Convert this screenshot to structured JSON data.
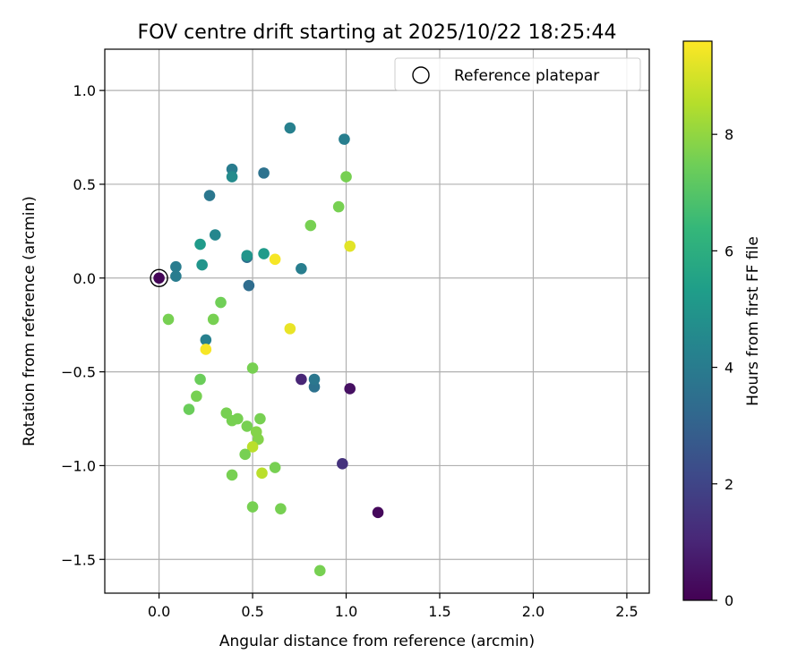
{
  "chart_data": {
    "type": "scatter",
    "title": "FOV centre drift starting at 2025/10/22 18:25:44",
    "xlabel": "Angular distance from reference (arcmin)",
    "ylabel": "Rotation from reference (arcmin)",
    "xlim": [
      -0.29,
      2.62
    ],
    "ylim": [
      -1.68,
      1.22
    ],
    "xticks": [
      0.0,
      0.5,
      1.0,
      1.5,
      2.0,
      2.5
    ],
    "xtick_labels": [
      "0.0",
      "0.5",
      "1.0",
      "1.5",
      "2.0",
      "2.5"
    ],
    "yticks": [
      -1.5,
      -1.0,
      -0.5,
      0.0,
      0.5,
      1.0
    ],
    "ytick_labels": [
      "−1.5",
      "−1.0",
      "−0.5",
      "0.0",
      "0.5",
      "1.0"
    ],
    "grid": true,
    "legend": {
      "position": "top-right",
      "entries": [
        "Reference platepar"
      ]
    },
    "reference_point": {
      "x": 0.0,
      "y": 0.0
    },
    "colorbar": {
      "label": "Hours from first FF file",
      "range": [
        0,
        9.6
      ],
      "ticks": [
        0,
        2,
        4,
        6,
        8
      ],
      "tick_labels": [
        "0",
        "2",
        "4",
        "6",
        "8"
      ],
      "colormap_stops": [
        "#440154",
        "#482878",
        "#3e4989",
        "#31688e",
        "#26828e",
        "#1f9e89",
        "#35b779",
        "#6ece58",
        "#b5de2b",
        "#fde725"
      ]
    },
    "points": [
      {
        "x": 0.0,
        "y": 0.0,
        "h": 0.1
      },
      {
        "x": 1.17,
        "y": -1.25,
        "h": 0.2
      },
      {
        "x": 1.02,
        "y": -0.59,
        "h": 0.4
      },
      {
        "x": 0.76,
        "y": -0.54,
        "h": 1.0
      },
      {
        "x": 0.98,
        "y": -0.99,
        "h": 1.4
      },
      {
        "x": 0.48,
        "y": -0.04,
        "h": 3.4
      },
      {
        "x": 0.47,
        "y": 0.11,
        "h": 3.5
      },
      {
        "x": 0.83,
        "y": -0.58,
        "h": 3.6
      },
      {
        "x": 0.83,
        "y": -0.54,
        "h": 3.8
      },
      {
        "x": 0.56,
        "y": 0.56,
        "h": 3.6
      },
      {
        "x": 0.27,
        "y": 0.44,
        "h": 3.8
      },
      {
        "x": 0.39,
        "y": 0.58,
        "h": 4.0
      },
      {
        "x": 0.09,
        "y": 0.06,
        "h": 4.0
      },
      {
        "x": 0.09,
        "y": 0.01,
        "h": 4.0
      },
      {
        "x": 0.25,
        "y": -0.33,
        "h": 4.2
      },
      {
        "x": 0.7,
        "y": 0.8,
        "h": 4.2
      },
      {
        "x": 0.99,
        "y": 0.74,
        "h": 4.1
      },
      {
        "x": 0.3,
        "y": 0.23,
        "h": 4.4
      },
      {
        "x": 0.76,
        "y": 0.05,
        "h": 4.1
      },
      {
        "x": 0.39,
        "y": 0.54,
        "h": 4.6
      },
      {
        "x": 0.23,
        "y": 0.07,
        "h": 5.0
      },
      {
        "x": 0.22,
        "y": 0.18,
        "h": 5.2
      },
      {
        "x": 0.56,
        "y": 0.13,
        "h": 5.2
      },
      {
        "x": 0.47,
        "y": 0.12,
        "h": 5.0
      },
      {
        "x": 0.05,
        "y": -0.22,
        "h": 7.6
      },
      {
        "x": 0.29,
        "y": -0.22,
        "h": 7.6
      },
      {
        "x": 0.33,
        "y": -0.13,
        "h": 7.5
      },
      {
        "x": 0.22,
        "y": -0.54,
        "h": 7.4
      },
      {
        "x": 0.2,
        "y": -0.63,
        "h": 7.6
      },
      {
        "x": 0.16,
        "y": -0.7,
        "h": 7.4
      },
      {
        "x": 0.36,
        "y": -0.72,
        "h": 7.6
      },
      {
        "x": 0.39,
        "y": -0.76,
        "h": 7.6
      },
      {
        "x": 0.42,
        "y": -0.75,
        "h": 7.6
      },
      {
        "x": 0.47,
        "y": -0.79,
        "h": 7.6
      },
      {
        "x": 0.52,
        "y": -0.82,
        "h": 7.8
      },
      {
        "x": 0.54,
        "y": -0.75,
        "h": 7.6
      },
      {
        "x": 0.53,
        "y": -0.86,
        "h": 7.8
      },
      {
        "x": 0.5,
        "y": -0.9,
        "h": 8.6
      },
      {
        "x": 0.46,
        "y": -0.94,
        "h": 7.6
      },
      {
        "x": 0.39,
        "y": -1.05,
        "h": 7.6
      },
      {
        "x": 0.55,
        "y": -1.04,
        "h": 8.6
      },
      {
        "x": 0.62,
        "y": -1.01,
        "h": 7.6
      },
      {
        "x": 0.5,
        "y": -1.22,
        "h": 7.6
      },
      {
        "x": 0.65,
        "y": -1.23,
        "h": 7.6
      },
      {
        "x": 0.86,
        "y": -1.56,
        "h": 7.6
      },
      {
        "x": 0.5,
        "y": -0.48,
        "h": 7.6
      },
      {
        "x": 0.81,
        "y": 0.28,
        "h": 7.6
      },
      {
        "x": 0.96,
        "y": 0.38,
        "h": 7.6
      },
      {
        "x": 1.0,
        "y": 0.54,
        "h": 7.6
      },
      {
        "x": 0.25,
        "y": -0.38,
        "h": 9.5
      },
      {
        "x": 0.62,
        "y": 0.1,
        "h": 9.5
      },
      {
        "x": 0.7,
        "y": -0.27,
        "h": 9.3
      },
      {
        "x": 1.02,
        "y": 0.17,
        "h": 9.2
      }
    ]
  }
}
